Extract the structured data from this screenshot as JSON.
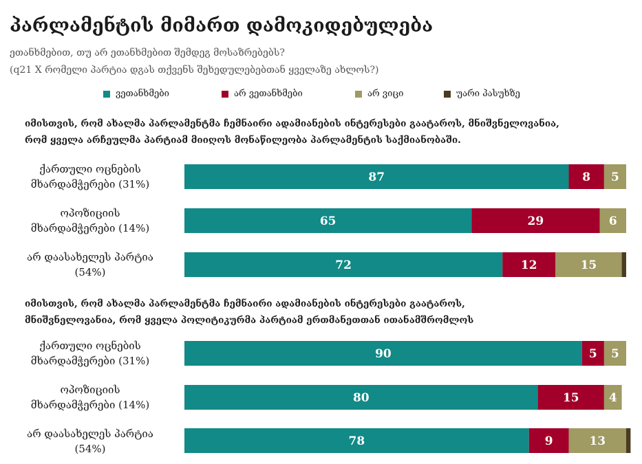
{
  "title": "პარლამენტის მიმართ დამოკიდებულება",
  "subtitle_line1": "ეთანხმებით, თუ არ ეთანხმებით შემდეგ მოსაზრებებს?",
  "subtitle_line2": "(q21 X რომელი პარტია დგას თქვენს შეხედულებებთან ყველაზე ახლოს?)",
  "legend": [
    {
      "label": "ვეთანხმები",
      "color": "#128a87"
    },
    {
      "label": "არ ვეთანხმები",
      "color": "#a2002a"
    },
    {
      "label": "არ ვიცი",
      "color": "#a09a63"
    },
    {
      "label": "უარი პასუხზე",
      "color": "#4a3c22"
    }
  ],
  "chart_data": [
    {
      "type": "bar",
      "orientation": "horizontal",
      "stacked": true,
      "title_line1": "იმისთვის, რომ ახალმა პარლამენტმა ჩემნაირი ადამიანების ინტერესები გაატაროს, მნიშვნელოვანია,",
      "title_line2": "რომ ყველა არჩეულმა პარტიამ მიიღოს მონაწილეობა პარლამენტის საქმიანობაში.",
      "categories": [
        [
          "ქართული ოცნების",
          "მხარდამჭერები (31%)"
        ],
        [
          "ოპოზიციის",
          "მხარდამჭერები (14%)"
        ],
        [
          "არ დაასახელეს პარტია",
          "(54%)"
        ]
      ],
      "series": [
        {
          "name": "ვეთანხმები",
          "values": [
            87,
            65,
            72
          ]
        },
        {
          "name": "არ ვეთანხმები",
          "values": [
            8,
            29,
            12
          ]
        },
        {
          "name": "არ ვიცი",
          "values": [
            5,
            6,
            15
          ]
        },
        {
          "name": "უარი პასუხზე",
          "values": [
            0,
            0,
            1
          ]
        }
      ],
      "xlim": [
        0,
        100
      ]
    },
    {
      "type": "bar",
      "orientation": "horizontal",
      "stacked": true,
      "title_line1": "იმისთვის, რომ ახალმა პარლამენტმა ჩემნაირი ადამიანების ინტერესები გაატაროს,",
      "title_line2": "მნიშვნელოვანია, რომ ყველა პოლიტიკურმა პარტიამ ერთმანეთთან ითანამშრომლოს",
      "categories": [
        [
          "ქართული ოცნების",
          "მხარდამჭერები (31%)"
        ],
        [
          "ოპოზიციის",
          "მხარდამჭერები (14%)"
        ],
        [
          "არ დაასახელეს პარტია",
          "(54%)"
        ]
      ],
      "series": [
        {
          "name": "ვეთანხმები",
          "values": [
            90,
            80,
            78
          ]
        },
        {
          "name": "არ ვეთანხმები",
          "values": [
            5,
            15,
            9
          ]
        },
        {
          "name": "არ ვიცი",
          "values": [
            5,
            4,
            13
          ]
        },
        {
          "name": "უარი პასუხზე",
          "values": [
            0,
            0,
            1
          ]
        }
      ],
      "xlim": [
        0,
        100
      ]
    }
  ]
}
